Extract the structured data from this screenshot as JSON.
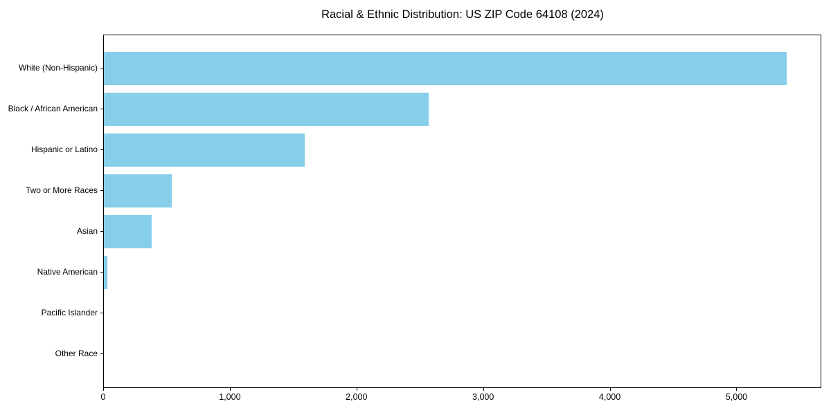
{
  "title": "Racial & Ethnic Distribution: US ZIP Code 64108 (2024)",
  "chart_data": {
    "type": "bar",
    "orientation": "horizontal",
    "title": "Racial & Ethnic Distribution: US ZIP Code 64108 (2024)",
    "categories": [
      "White (Non-Hispanic)",
      "Black / African American",
      "Hispanic or Latino",
      "Two or More Races",
      "Asian",
      "Native American",
      "Pacific Islander",
      "Other Race"
    ],
    "values": [
      5400,
      2570,
      1590,
      535,
      380,
      30,
      0,
      0
    ],
    "xlabel": "",
    "ylabel": "",
    "xlim": [
      0,
      5670
    ],
    "x_ticks": [
      0,
      1000,
      2000,
      3000,
      4000,
      5000
    ],
    "x_tick_labels": [
      "0",
      "1,000",
      "2,000",
      "3,000",
      "4,000",
      "5,000"
    ],
    "bar_color": "#87CEEB",
    "grid": false,
    "legend": "none",
    "background_color": "#ffffff",
    "spine_color": "#000000"
  }
}
